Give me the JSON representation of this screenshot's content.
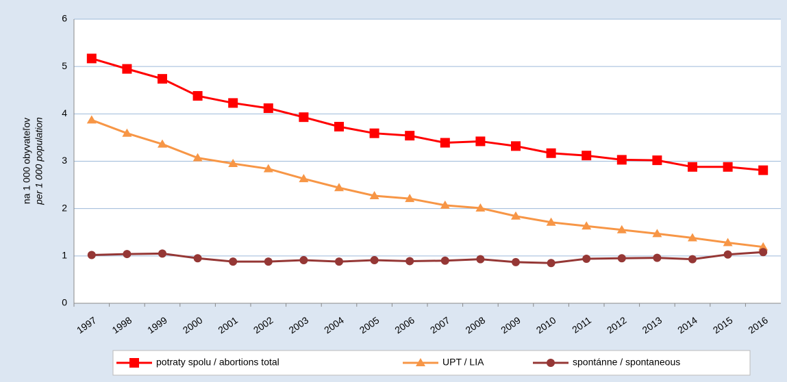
{
  "chart_data": {
    "type": "line",
    "ylabel": [
      "na 1 000 obyvateľov",
      "per 1 000 population"
    ],
    "categories": [
      "1997",
      "1998",
      "1999",
      "2000",
      "2001",
      "2002",
      "2003",
      "2004",
      "2005",
      "2006",
      "2007",
      "2008",
      "2009",
      "2010",
      "2011",
      "2012",
      "2013",
      "2014",
      "2015",
      "2016"
    ],
    "series": [
      {
        "name": "potraty spolu / abortions total",
        "color": "#ff0000",
        "marker": "square",
        "values": [
          5.17,
          4.95,
          4.74,
          4.38,
          4.23,
          4.12,
          3.93,
          3.73,
          3.59,
          3.54,
          3.39,
          3.42,
          3.32,
          3.17,
          3.12,
          3.03,
          3.02,
          2.88,
          2.88,
          2.81
        ]
      },
      {
        "name": "UPT / LIA",
        "color": "#f79646",
        "marker": "triangle",
        "values": [
          3.87,
          3.59,
          3.36,
          3.07,
          2.95,
          2.84,
          2.63,
          2.44,
          2.27,
          2.21,
          2.07,
          2.01,
          1.84,
          1.71,
          1.63,
          1.55,
          1.47,
          1.38,
          1.28,
          1.19
        ]
      },
      {
        "name": "spontánne / spontaneous",
        "color": "#953735",
        "marker": "circle",
        "values": [
          1.02,
          1.04,
          1.05,
          0.95,
          0.88,
          0.88,
          0.91,
          0.88,
          0.91,
          0.89,
          0.9,
          0.93,
          0.87,
          0.85,
          0.94,
          0.95,
          0.96,
          0.93,
          1.03,
          1.08
        ]
      }
    ],
    "ylim": [
      0,
      6
    ],
    "yticks": [
      0,
      1,
      2,
      3,
      4,
      5,
      6
    ],
    "grid": true,
    "legend": "bottom"
  }
}
